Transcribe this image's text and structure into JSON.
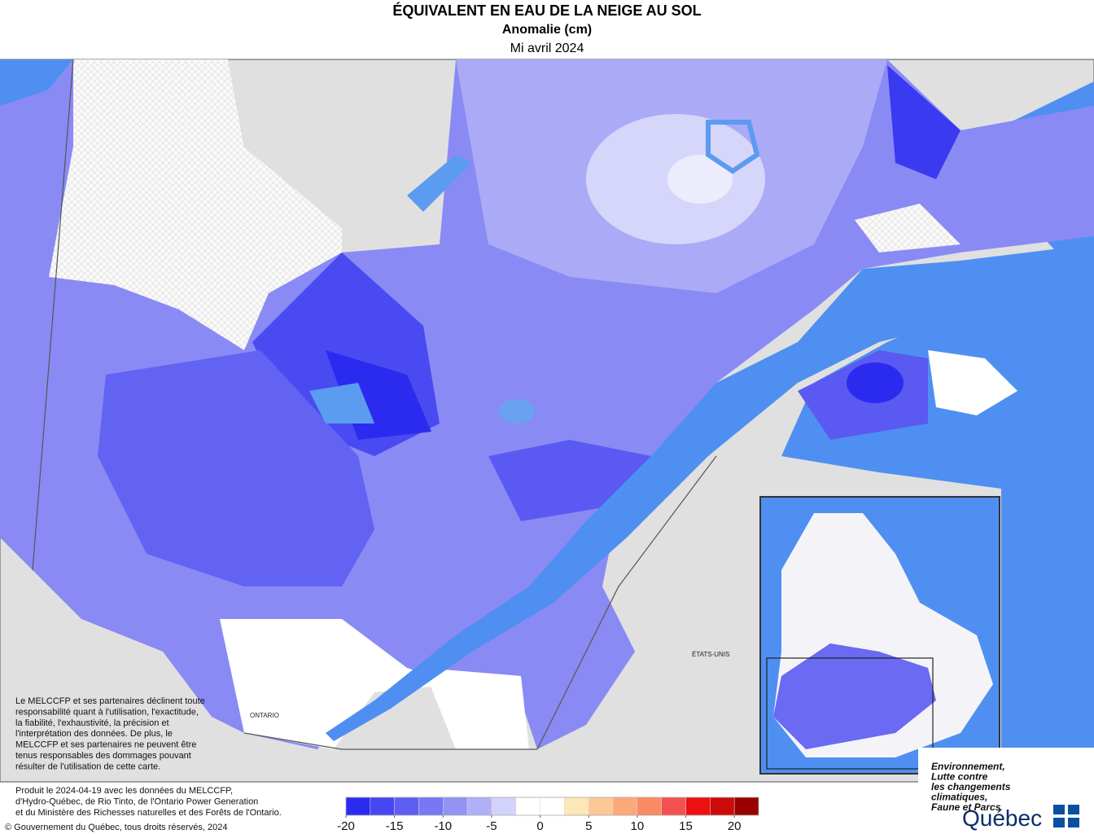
{
  "header": {
    "title": "ÉQUIVALENT EN EAU DE LA NEIGE AU SOL",
    "subtitle": "Anomalie (cm)",
    "period": "Mi avril 2024"
  },
  "map_labels": {
    "usa": "ÉTATS-UNIS",
    "ontario": "ONTARIO"
  },
  "disclaimer": [
    "Le MELCCFP et ses partenaires déclinent toute",
    "responsabilité quant à l'utilisation, l'exactitude,",
    "la fiabilité, l'exhaustivité, la précision et",
    "l'interprétation des données. De plus, le",
    "MELCCFP et ses partenaires ne peuvent être",
    "tenus responsables des dommages pouvant",
    "résulter de l'utilisation de cette carte."
  ],
  "production_note": [
    "Produit le 2024-04-19 avec les données du MELCCFP,",
    "d'Hydro-Québec, de Rio Tinto, de l'Ontario Power Generation",
    "et du Ministère des Richesses naturelles et des Forêts de l'Ontario."
  ],
  "copyright": "© Gouvernement du Québec, tous droits réservés, 2024",
  "legend": {
    "colors": [
      "#2b2bf0",
      "#4646f2",
      "#5e5ef3",
      "#7878f4",
      "#9393f6",
      "#b0b0f8",
      "#d2d2fa",
      "#ffffff",
      "#ffffff",
      "#fde6b8",
      "#fdc896",
      "#fca97a",
      "#f98a63",
      "#f55050",
      "#ee1010",
      "#cc0a0a",
      "#990000"
    ],
    "ticks": [
      -20,
      -15,
      -10,
      -5,
      0,
      5,
      10,
      15,
      20
    ]
  },
  "logo": {
    "ministry": [
      "Environnement,",
      "Lutte contre",
      "les changements",
      "climatiques,",
      "Faune et Parcs"
    ],
    "name": "Québec"
  }
}
